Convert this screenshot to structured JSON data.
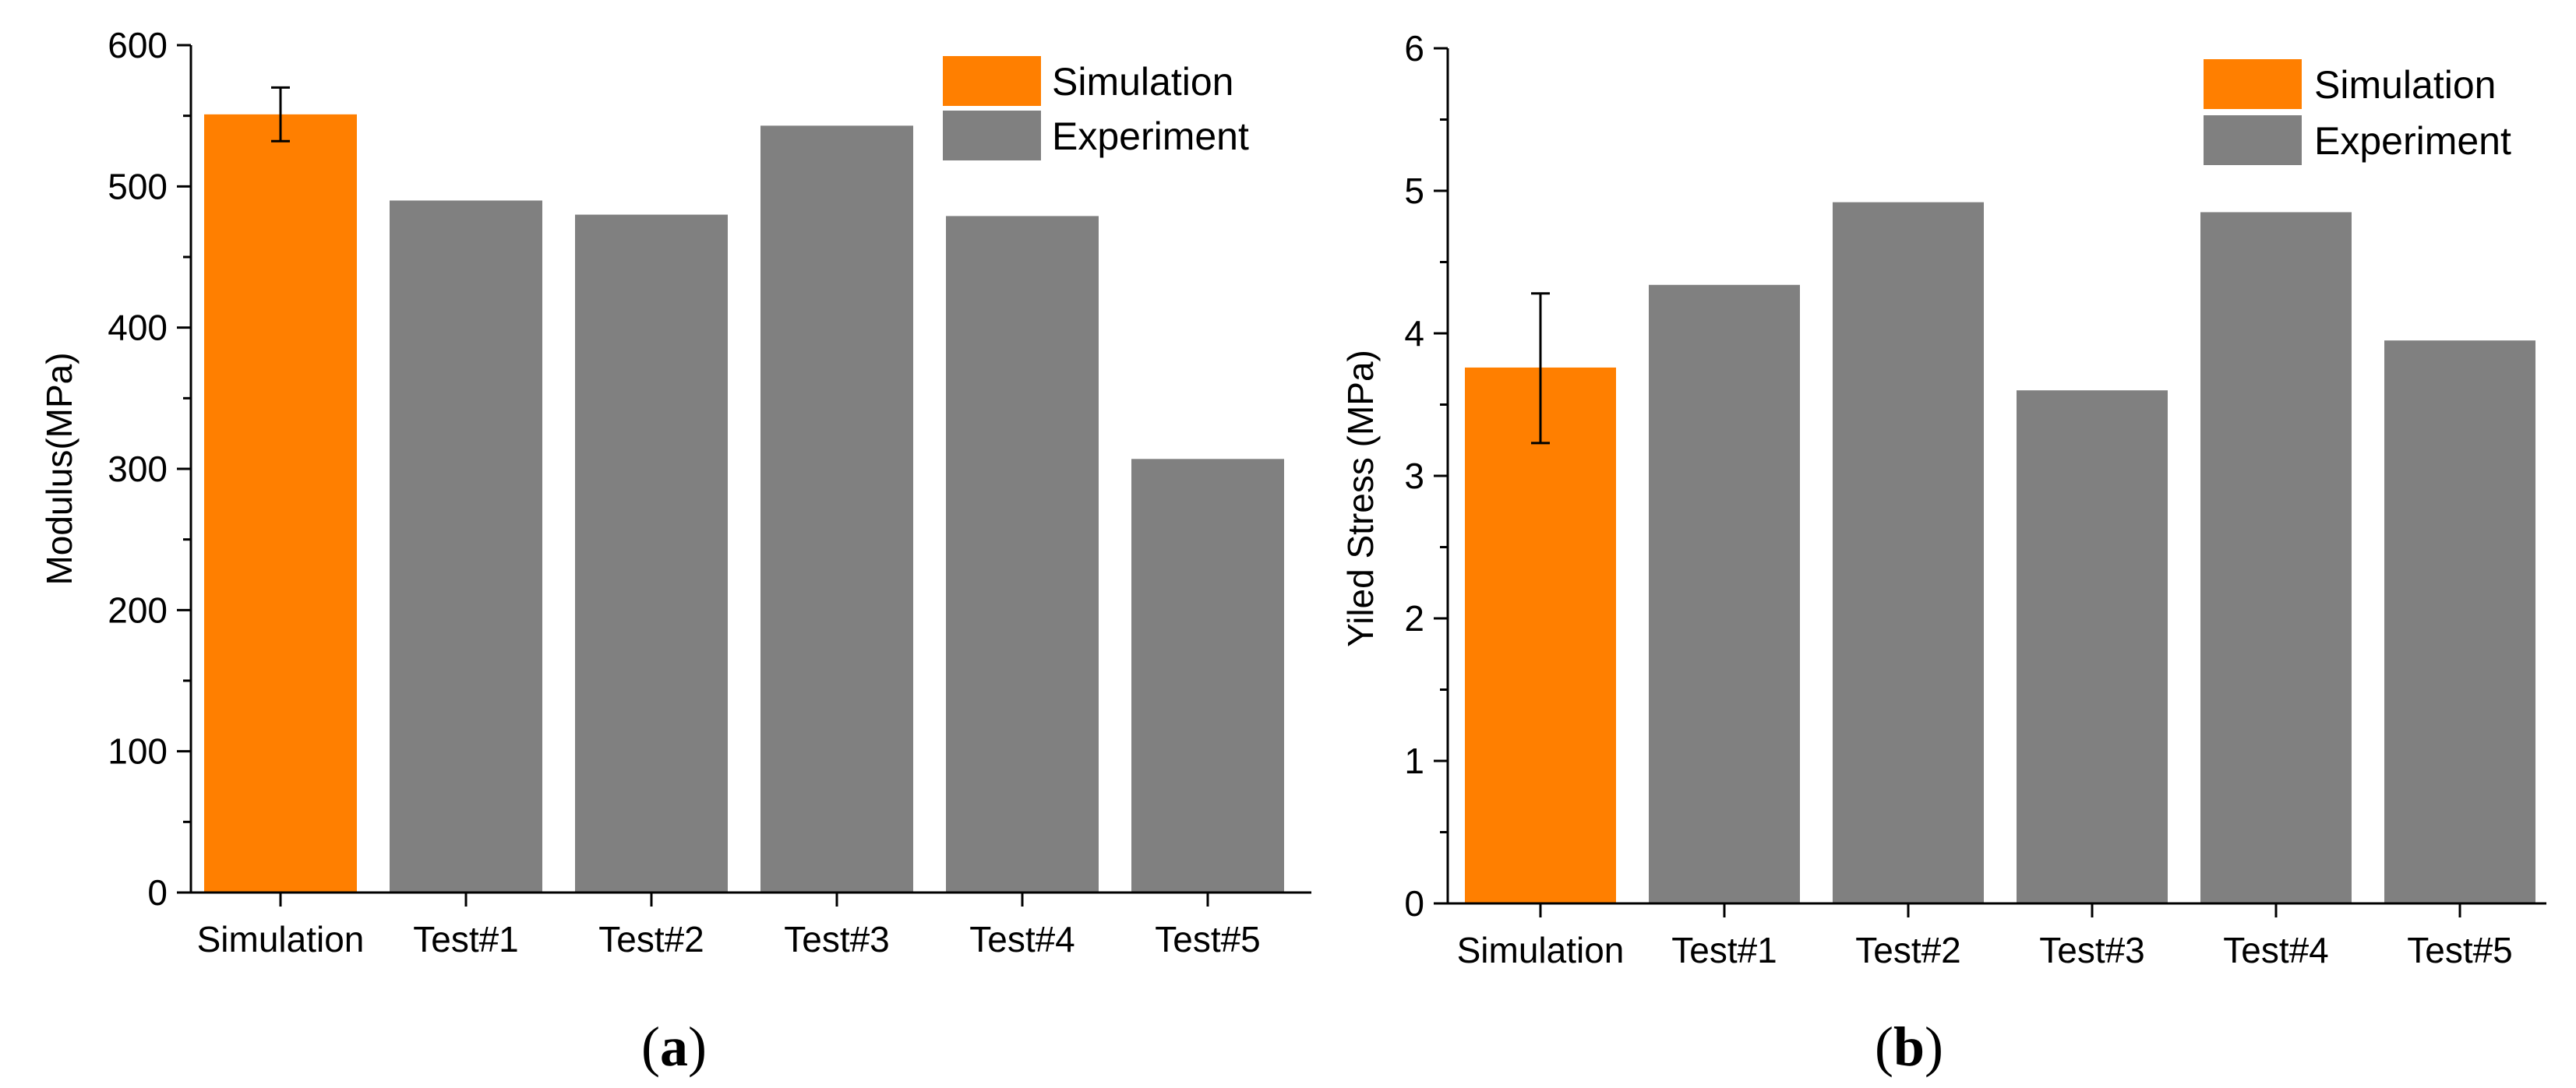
{
  "colors": {
    "simulation": "#ff7f00",
    "experiment": "#808080",
    "axis": "#000000"
  },
  "panels": [
    {
      "label_open": "(",
      "label_letter": "a",
      "label_close": ")"
    },
    {
      "label_open": "(",
      "label_letter": "b",
      "label_close": ")"
    }
  ],
  "chart_data": [
    {
      "type": "bar",
      "categories": [
        "Simulation",
        "Test#1",
        "Test#2",
        "Test#3",
        "Test#4",
        "Test#5"
      ],
      "values": [
        551,
        490,
        480,
        543,
        479,
        307
      ],
      "series_of_bar": [
        "Simulation",
        "Experiment",
        "Experiment",
        "Experiment",
        "Experiment",
        "Experiment"
      ],
      "error_bars": [
        {
          "index": 0,
          "low": 532,
          "high": 570
        }
      ],
      "ylabel": "Modulus(MPa)",
      "xlabel": "",
      "ylim": [
        0,
        600
      ],
      "yticks": [
        0,
        100,
        200,
        300,
        400,
        500,
        600
      ],
      "ytick_labels": [
        "0",
        "100",
        "200",
        "300",
        "400",
        "500",
        "600"
      ],
      "legend": [
        "Simulation",
        "Experiment"
      ],
      "legend_position": "top-right"
    },
    {
      "type": "bar",
      "categories": [
        "Simulation",
        "Test#1",
        "Test#2",
        "Test#3",
        "Test#4",
        "Test#5"
      ],
      "values": [
        3.76,
        4.34,
        4.92,
        3.6,
        4.85,
        3.95
      ],
      "series_of_bar": [
        "Simulation",
        "Experiment",
        "Experiment",
        "Experiment",
        "Experiment",
        "Experiment"
      ],
      "error_bars": [
        {
          "index": 0,
          "low": 3.23,
          "high": 4.28
        }
      ],
      "ylabel": "Yiled Stress (MPa)",
      "xlabel": "",
      "ylim": [
        0,
        6
      ],
      "yticks": [
        0,
        1,
        2,
        3,
        4,
        5,
        6
      ],
      "ytick_labels": [
        "0",
        "1",
        "2",
        "3",
        "4",
        "5",
        "6"
      ],
      "legend": [
        "Simulation",
        "Experiment"
      ],
      "legend_position": "top-right"
    }
  ]
}
